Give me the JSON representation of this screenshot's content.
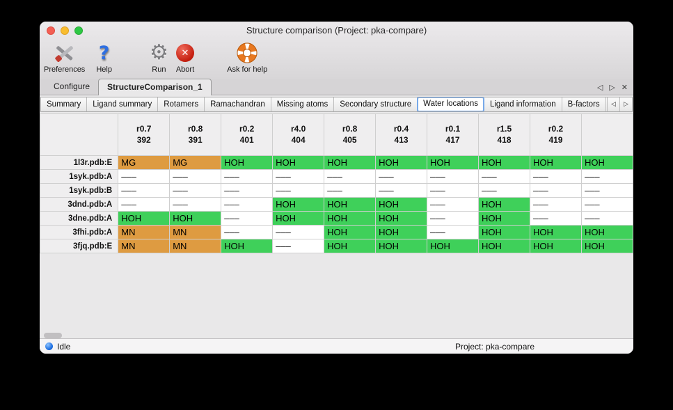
{
  "window": {
    "title": "Structure comparison (Project: pka-compare)"
  },
  "toolbar": {
    "preferences": "Preferences",
    "help": "Help",
    "run": "Run",
    "abort": "Abort",
    "ask_for_help": "Ask for help"
  },
  "tabs": {
    "configure": "Configure",
    "structure_comparison": "StructureComparison_1"
  },
  "tab_controls": {
    "prev": "◁",
    "next": "▷",
    "close": "✕"
  },
  "subtabs": {
    "items": [
      "Summary",
      "Ligand summary",
      "Rotamers",
      "Ramachandran",
      "Missing atoms",
      "Secondary structure",
      "Water locations",
      "Ligand information",
      "B-factors"
    ],
    "selected": "Water locations",
    "prev": "◁",
    "next": "▷"
  },
  "colors": {
    "water": "#3fd05a",
    "metal": "#de9b41",
    "empty": "#ffffff"
  },
  "table": {
    "columns": [
      {
        "line1": "r0.7",
        "line2": "392"
      },
      {
        "line1": "r0.8",
        "line2": "391"
      },
      {
        "line1": "r0.2",
        "line2": "401"
      },
      {
        "line1": "r4.0",
        "line2": "404"
      },
      {
        "line1": "r0.8",
        "line2": "405"
      },
      {
        "line1": "r0.4",
        "line2": "413"
      },
      {
        "line1": "r0.1",
        "line2": "417"
      },
      {
        "line1": "r1.5",
        "line2": "418"
      },
      {
        "line1": "r0.2",
        "line2": "419"
      },
      {
        "line1": "",
        "line2": ""
      }
    ],
    "rows": [
      {
        "label": "1l3r.pdb:E",
        "cells": [
          {
            "text": "MG",
            "type": "metal"
          },
          {
            "text": "MG",
            "type": "metal"
          },
          {
            "text": "HOH",
            "type": "water"
          },
          {
            "text": "HOH",
            "type": "water"
          },
          {
            "text": "HOH",
            "type": "water"
          },
          {
            "text": "HOH",
            "type": "water"
          },
          {
            "text": "HOH",
            "type": "water"
          },
          {
            "text": "HOH",
            "type": "water"
          },
          {
            "text": "HOH",
            "type": "water"
          },
          {
            "text": "HOH",
            "type": "water"
          }
        ]
      },
      {
        "label": "1syk.pdb:A",
        "cells": [
          {
            "text": "–––",
            "type": "empty"
          },
          {
            "text": "–––",
            "type": "empty"
          },
          {
            "text": "–––",
            "type": "empty"
          },
          {
            "text": "–––",
            "type": "empty"
          },
          {
            "text": "–––",
            "type": "empty"
          },
          {
            "text": "–––",
            "type": "empty"
          },
          {
            "text": "–––",
            "type": "empty"
          },
          {
            "text": "–––",
            "type": "empty"
          },
          {
            "text": "–––",
            "type": "empty"
          },
          {
            "text": "–––",
            "type": "empty"
          }
        ]
      },
      {
        "label": "1syk.pdb:B",
        "cells": [
          {
            "text": "–––",
            "type": "empty"
          },
          {
            "text": "–––",
            "type": "empty"
          },
          {
            "text": "–––",
            "type": "empty"
          },
          {
            "text": "–––",
            "type": "empty"
          },
          {
            "text": "–––",
            "type": "empty"
          },
          {
            "text": "–––",
            "type": "empty"
          },
          {
            "text": "–––",
            "type": "empty"
          },
          {
            "text": "–––",
            "type": "empty"
          },
          {
            "text": "–––",
            "type": "empty"
          },
          {
            "text": "–––",
            "type": "empty"
          }
        ]
      },
      {
        "label": "3dnd.pdb:A",
        "cells": [
          {
            "text": "–––",
            "type": "empty"
          },
          {
            "text": "–––",
            "type": "empty"
          },
          {
            "text": "–––",
            "type": "empty"
          },
          {
            "text": "HOH",
            "type": "water"
          },
          {
            "text": "HOH",
            "type": "water"
          },
          {
            "text": "HOH",
            "type": "water"
          },
          {
            "text": "–––",
            "type": "empty"
          },
          {
            "text": "HOH",
            "type": "water"
          },
          {
            "text": "–––",
            "type": "empty"
          },
          {
            "text": "–––",
            "type": "empty"
          }
        ]
      },
      {
        "label": "3dne.pdb:A",
        "cells": [
          {
            "text": "HOH",
            "type": "water"
          },
          {
            "text": "HOH",
            "type": "water"
          },
          {
            "text": "–––",
            "type": "empty"
          },
          {
            "text": "HOH",
            "type": "water"
          },
          {
            "text": "HOH",
            "type": "water"
          },
          {
            "text": "HOH",
            "type": "water"
          },
          {
            "text": "–––",
            "type": "empty"
          },
          {
            "text": "HOH",
            "type": "water"
          },
          {
            "text": "–––",
            "type": "empty"
          },
          {
            "text": "–––",
            "type": "empty"
          }
        ]
      },
      {
        "label": "3fhi.pdb:A",
        "cells": [
          {
            "text": "MN",
            "type": "metal"
          },
          {
            "text": "MN",
            "type": "metal"
          },
          {
            "text": "–––",
            "type": "empty"
          },
          {
            "text": "–––",
            "type": "empty"
          },
          {
            "text": "HOH",
            "type": "water"
          },
          {
            "text": "HOH",
            "type": "water"
          },
          {
            "text": "–––",
            "type": "empty"
          },
          {
            "text": "HOH",
            "type": "water"
          },
          {
            "text": "HOH",
            "type": "water"
          },
          {
            "text": "HOH",
            "type": "water"
          }
        ]
      },
      {
        "label": "3fjq.pdb:E",
        "cells": [
          {
            "text": "MN",
            "type": "metal"
          },
          {
            "text": "MN",
            "type": "metal"
          },
          {
            "text": "HOH",
            "type": "water"
          },
          {
            "text": "–––",
            "type": "empty"
          },
          {
            "text": "HOH",
            "type": "water"
          },
          {
            "text": "HOH",
            "type": "water"
          },
          {
            "text": "HOH",
            "type": "water"
          },
          {
            "text": "HOH",
            "type": "water"
          },
          {
            "text": "HOH",
            "type": "water"
          },
          {
            "text": "HOH",
            "type": "water"
          }
        ]
      }
    ]
  },
  "statusbar": {
    "status": "Idle",
    "project": "Project: pka-compare"
  }
}
